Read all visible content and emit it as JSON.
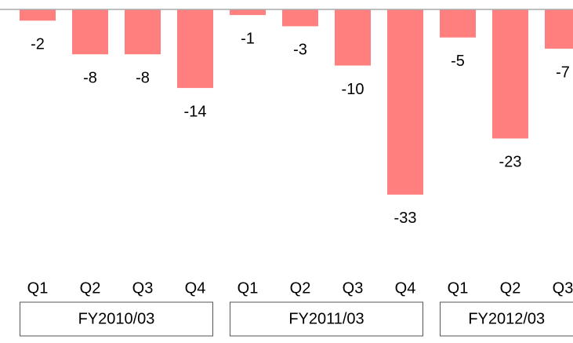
{
  "chart_data": {
    "type": "bar",
    "categories": [
      "Q1",
      "Q2",
      "Q3",
      "Q4",
      "Q1",
      "Q2",
      "Q3",
      "Q4",
      "Q1",
      "Q2",
      "Q3"
    ],
    "values": [
      -2,
      -8,
      -8,
      -14,
      -1,
      -3,
      -10,
      -33,
      -5,
      -23,
      -7
    ],
    "groups": [
      "FY2010/03",
      "FY2011/03",
      "FY2012/03"
    ],
    "color": "#ff7f7f",
    "ylim": [
      -40,
      0
    ]
  }
}
